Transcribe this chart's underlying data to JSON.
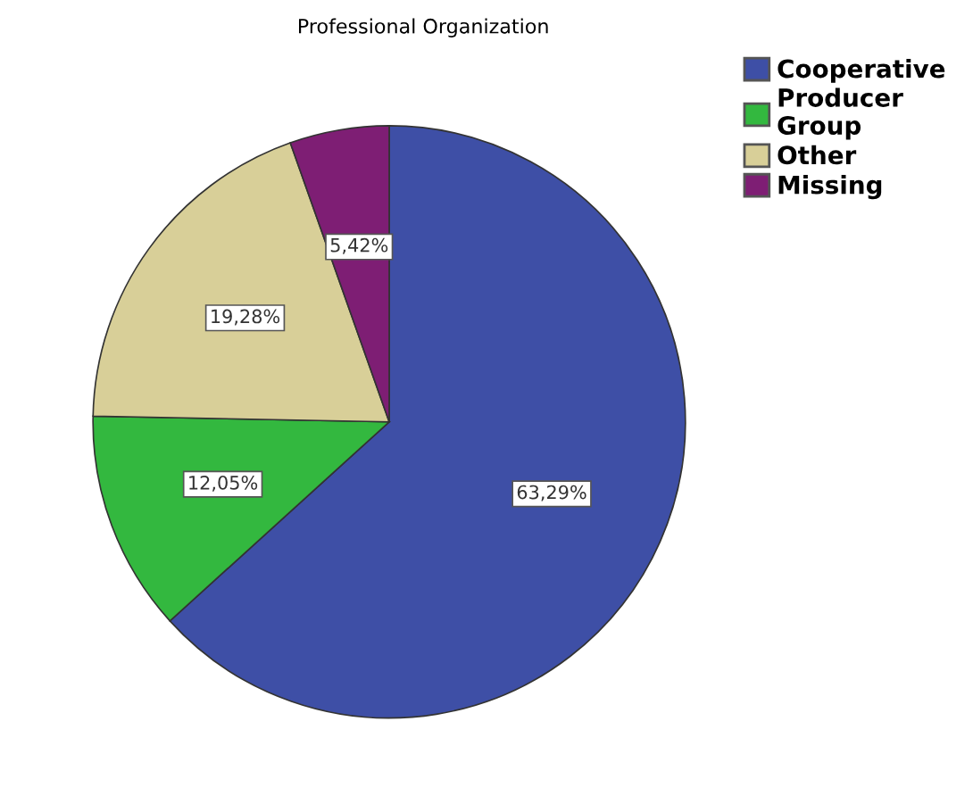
{
  "chart_data": {
    "type": "pie",
    "title": "Professional Organization",
    "categories": [
      "Cooperative",
      "Producer\nGroup",
      "Other",
      "Missing"
    ],
    "values": [
      63.29,
      12.05,
      19.28,
      5.42
    ],
    "value_labels": [
      "63,29%",
      "12,05%",
      "19,28%",
      "5,42%"
    ],
    "colors": [
      "#3e4fa6",
      "#33b83f",
      "#d8cf98",
      "#7e1e74"
    ],
    "legend": "top right"
  }
}
